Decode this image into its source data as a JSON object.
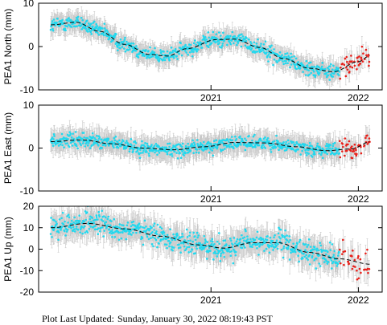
{
  "footer": {
    "label": "Plot Last Updated:",
    "value": "Sunday, January 30, 2022 08:19:43 PST"
  },
  "colors": {
    "point": "#22d8ee",
    "recent_point": "#e8201a",
    "error_bar": "#c8c8c8",
    "model_line": "#000000"
  },
  "chart_data": [
    {
      "type": "scatter",
      "station": "PEA1",
      "ylabel": "PEA1 North (mm)",
      "ylim": [
        -10,
        10
      ],
      "yticks": [
        -10,
        0,
        10
      ],
      "xlim": [
        "2019-11-01",
        "2022-03-01"
      ],
      "xticks": [
        {
          "value": "2021-01-01",
          "label": "2021"
        },
        {
          "value": "2022-01-01",
          "label": "2022"
        }
      ],
      "error_mm": 2.0,
      "scatter_mm": 1.2,
      "recent_after": "2021-11-15",
      "model_fit": [
        {
          "x": "2019-12-01",
          "y": 5.0
        },
        {
          "x": "2020-02-01",
          "y": 5.6
        },
        {
          "x": "2020-04-01",
          "y": 3.5
        },
        {
          "x": "2020-06-01",
          "y": 0.5
        },
        {
          "x": "2020-08-01",
          "y": -1.8
        },
        {
          "x": "2020-09-15",
          "y": -2.2
        },
        {
          "x": "2020-11-01",
          "y": -0.5
        },
        {
          "x": "2021-01-15",
          "y": 1.6
        },
        {
          "x": "2021-03-01",
          "y": 1.7
        },
        {
          "x": "2021-05-01",
          "y": -0.2
        },
        {
          "x": "2021-07-01",
          "y": -2.8
        },
        {
          "x": "2021-09-01",
          "y": -5.0
        },
        {
          "x": "2021-11-01",
          "y": -5.8
        },
        {
          "x": "2022-01-01",
          "y": -3.5
        },
        {
          "x": "2022-02-01",
          "y": -2.0
        }
      ]
    },
    {
      "type": "scatter",
      "station": "PEA1",
      "ylabel": "PEA1 East (mm)",
      "ylim": [
        -10,
        10
      ],
      "yticks": [
        -10,
        0,
        10
      ],
      "xlim": [
        "2019-11-01",
        "2022-03-01"
      ],
      "xticks": [
        {
          "value": "2021-01-01",
          "label": "2021"
        },
        {
          "value": "2022-01-01",
          "label": "2022"
        }
      ],
      "error_mm": 2.3,
      "scatter_mm": 1.1,
      "recent_after": "2021-11-15",
      "model_fit": [
        {
          "x": "2019-12-01",
          "y": 1.5
        },
        {
          "x": "2020-02-15",
          "y": 1.9
        },
        {
          "x": "2020-05-01",
          "y": 1.0
        },
        {
          "x": "2020-07-15",
          "y": 0.0
        },
        {
          "x": "2020-10-01",
          "y": -0.4
        },
        {
          "x": "2020-12-15",
          "y": 0.3
        },
        {
          "x": "2021-03-01",
          "y": 1.3
        },
        {
          "x": "2021-05-15",
          "y": 1.2
        },
        {
          "x": "2021-08-01",
          "y": 0.3
        },
        {
          "x": "2021-10-15",
          "y": -0.6
        },
        {
          "x": "2021-12-15",
          "y": -0.2
        },
        {
          "x": "2022-02-01",
          "y": 1.5
        }
      ]
    },
    {
      "type": "scatter",
      "station": "PEA1",
      "ylabel": "PEA1 Up (mm)",
      "ylim": [
        -20,
        20
      ],
      "yticks": [
        -20,
        -10,
        0,
        10,
        20
      ],
      "xlim": [
        "2019-11-01",
        "2022-03-01"
      ],
      "xticks": [
        {
          "value": "2021-01-01",
          "label": "2021"
        },
        {
          "value": "2022-01-01",
          "label": "2022"
        }
      ],
      "error_mm": 5.5,
      "scatter_mm": 3.8,
      "recent_after": "2021-11-15",
      "model_fit": [
        {
          "x": "2019-12-01",
          "y": 10.0
        },
        {
          "x": "2020-03-01",
          "y": 12.0
        },
        {
          "x": "2020-06-01",
          "y": 9.5
        },
        {
          "x": "2020-09-01",
          "y": 6.0
        },
        {
          "x": "2020-12-01",
          "y": 2.0
        },
        {
          "x": "2021-02-01",
          "y": 0.5
        },
        {
          "x": "2021-04-15",
          "y": 3.0
        },
        {
          "x": "2021-06-15",
          "y": 3.0
        },
        {
          "x": "2021-09-01",
          "y": -1.5
        },
        {
          "x": "2021-11-15",
          "y": -4.5
        },
        {
          "x": "2022-02-01",
          "y": -7.0
        }
      ]
    }
  ]
}
